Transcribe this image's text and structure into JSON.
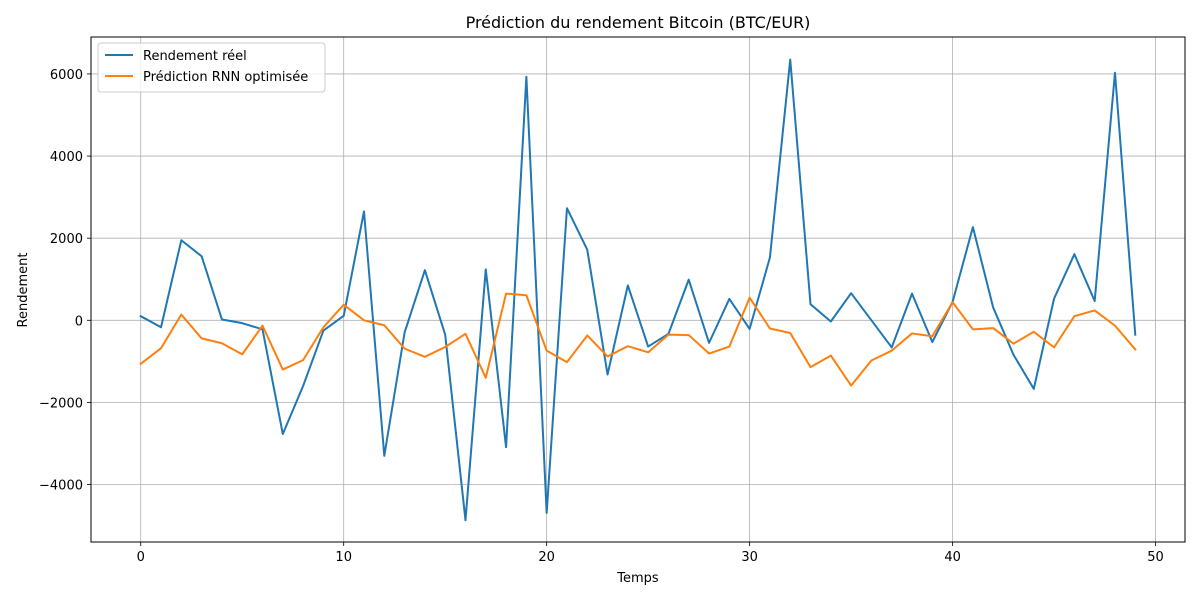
{
  "chart_data": {
    "type": "line",
    "title": "Prédiction du rendement Bitcoin (BTC/EUR)",
    "xlabel": "Temps",
    "ylabel": "Rendement",
    "xlim": [
      -2.45,
      51.45
    ],
    "ylim": [
      -5400,
      6900
    ],
    "xticks": [
      0,
      10,
      20,
      30,
      40,
      50
    ],
    "yticks": [
      -4000,
      -2000,
      0,
      2000,
      4000,
      6000
    ],
    "xtick_labels": [
      "0",
      "10",
      "20",
      "30",
      "40",
      "50"
    ],
    "ytick_labels": [
      "−4000",
      "−2000",
      "0",
      "2000",
      "4000",
      "6000"
    ],
    "grid": true,
    "legend_position": "top-left",
    "x": [
      0,
      1,
      2,
      3,
      4,
      5,
      6,
      7,
      8,
      9,
      10,
      11,
      12,
      13,
      14,
      15,
      16,
      17,
      18,
      19,
      20,
      21,
      22,
      23,
      24,
      25,
      26,
      27,
      28,
      29,
      30,
      31,
      32,
      33,
      34,
      35,
      36,
      37,
      38,
      39,
      40,
      41,
      42,
      43,
      44,
      45,
      46,
      47,
      48,
      49
    ],
    "series": [
      {
        "name": "Rendement réel",
        "color": "#1f77b4",
        "values": [
          100,
          -170,
          1950,
          1560,
          20,
          -70,
          -220,
          -2770,
          -1600,
          -250,
          110,
          2650,
          -3300,
          -300,
          1220,
          -350,
          -4870,
          1240,
          -3090,
          5930,
          -4690,
          2730,
          1720,
          -1320,
          850,
          -640,
          -330,
          990,
          -550,
          520,
          -210,
          1530,
          6350,
          390,
          -30,
          660,
          -1,
          -660,
          650,
          -530,
          450,
          2270,
          310,
          -840,
          -1670,
          530,
          1610,
          470,
          6030,
          -350
        ]
      },
      {
        "name": "Prédiction RNN optimisée",
        "color": "#ff7f0e",
        "values": [
          -1060,
          -680,
          140,
          -440,
          -560,
          -830,
          -130,
          -1200,
          -970,
          -170,
          380,
          0,
          -120,
          -690,
          -890,
          -650,
          -330,
          -1400,
          650,
          610,
          -740,
          -1020,
          -370,
          -880,
          -630,
          -780,
          -350,
          -360,
          -810,
          -640,
          550,
          -200,
          -310,
          -1140,
          -860,
          -1590,
          -980,
          -740,
          -320,
          -390,
          440,
          -220,
          -190,
          -570,
          -280,
          -660,
          100,
          240,
          -130,
          -710
        ]
      }
    ]
  }
}
